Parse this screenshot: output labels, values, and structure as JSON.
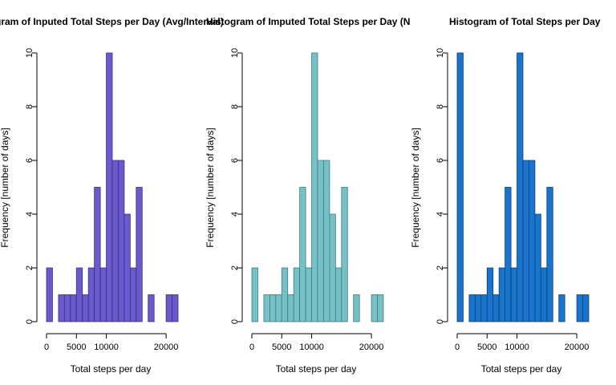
{
  "chart_data": [
    {
      "type": "bar",
      "title": "Histogram of Inputed Total Steps per Day (Avg/Interval)",
      "xlabel": "Total steps per day",
      "ylabel": "Frequency [number of days]",
      "bin_width": 1000,
      "bin_start": 0,
      "values": [
        2,
        0,
        1,
        1,
        1,
        2,
        1,
        2,
        5,
        2,
        10,
        6,
        6,
        4,
        2,
        5,
        0,
        1,
        0,
        0,
        1,
        1
      ],
      "xlim": [
        0,
        22000
      ],
      "ylim": [
        0,
        10
      ],
      "xticks": [
        0,
        5000,
        10000,
        20000
      ],
      "yticks": [
        0,
        2,
        4,
        6,
        8,
        10
      ],
      "fill_color": "#6a5acd",
      "border_color": "#3a2f7a",
      "grid": false
    },
    {
      "type": "bar",
      "title": "Histogram of Imputed Total Steps per Day (NAs Removed)",
      "xlabel": "Total steps per day",
      "ylabel": "Frequency [number of days]",
      "bin_width": 1000,
      "bin_start": 0,
      "values": [
        2,
        0,
        1,
        1,
        1,
        2,
        1,
        2,
        5,
        2,
        10,
        6,
        6,
        4,
        2,
        5,
        0,
        1,
        0,
        0,
        1,
        1
      ],
      "xlim": [
        0,
        22000
      ],
      "ylim": [
        0,
        10
      ],
      "xticks": [
        0,
        5000,
        10000,
        20000
      ],
      "yticks": [
        0,
        2,
        4,
        6,
        8,
        10
      ],
      "fill_color": "#76c1c6",
      "border_color": "#3d7b80",
      "grid": false
    },
    {
      "type": "bar",
      "title": "Histogram of Total Steps per Day",
      "xlabel": "Total steps per day",
      "ylabel": "Frequency [number of days]",
      "bin_width": 1000,
      "bin_start": 0,
      "values": [
        10,
        0,
        1,
        1,
        1,
        2,
        1,
        2,
        5,
        2,
        10,
        6,
        6,
        4,
        2,
        5,
        0,
        1,
        0,
        0,
        1,
        1
      ],
      "xlim": [
        0,
        22000
      ],
      "ylim": [
        0,
        10
      ],
      "xticks": [
        0,
        5000,
        10000,
        20000
      ],
      "yticks": [
        0,
        2,
        4,
        6,
        8,
        10
      ],
      "fill_color": "#1874cd",
      "border_color": "#0e3f73",
      "grid": false
    }
  ]
}
